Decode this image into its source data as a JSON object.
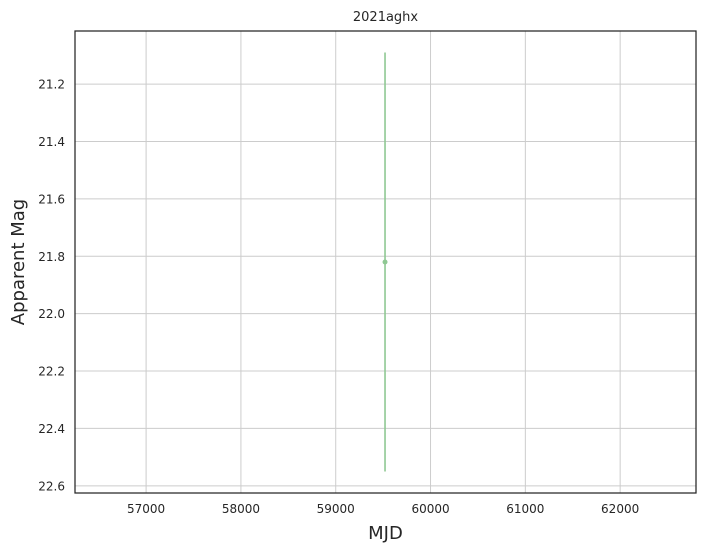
{
  "chart_data": {
    "type": "scatter",
    "title": "2021aghx",
    "xlabel": "MJD",
    "ylabel": "Apparent Mag",
    "xlim": [
      56250,
      62800
    ],
    "ylim": [
      22.625,
      21.015
    ],
    "y_inverted": true,
    "grid": true,
    "x_ticks": [
      57000,
      58000,
      59000,
      60000,
      61000,
      62000
    ],
    "y_ticks": [
      21.2,
      21.4,
      21.6,
      21.8,
      22.0,
      22.2,
      22.4,
      22.6
    ],
    "x_tick_labels": [
      "57000",
      "58000",
      "59000",
      "60000",
      "61000",
      "62000"
    ],
    "y_tick_labels": [
      "21.2",
      "21.4",
      "21.6",
      "21.8",
      "22.0",
      "22.2",
      "22.4",
      "22.6"
    ],
    "series": [
      {
        "color": "#8fc893",
        "points": [
          {
            "x": 59520,
            "y": 21.82,
            "yerr_low": 21.09,
            "yerr_high": 22.55
          }
        ]
      }
    ]
  }
}
